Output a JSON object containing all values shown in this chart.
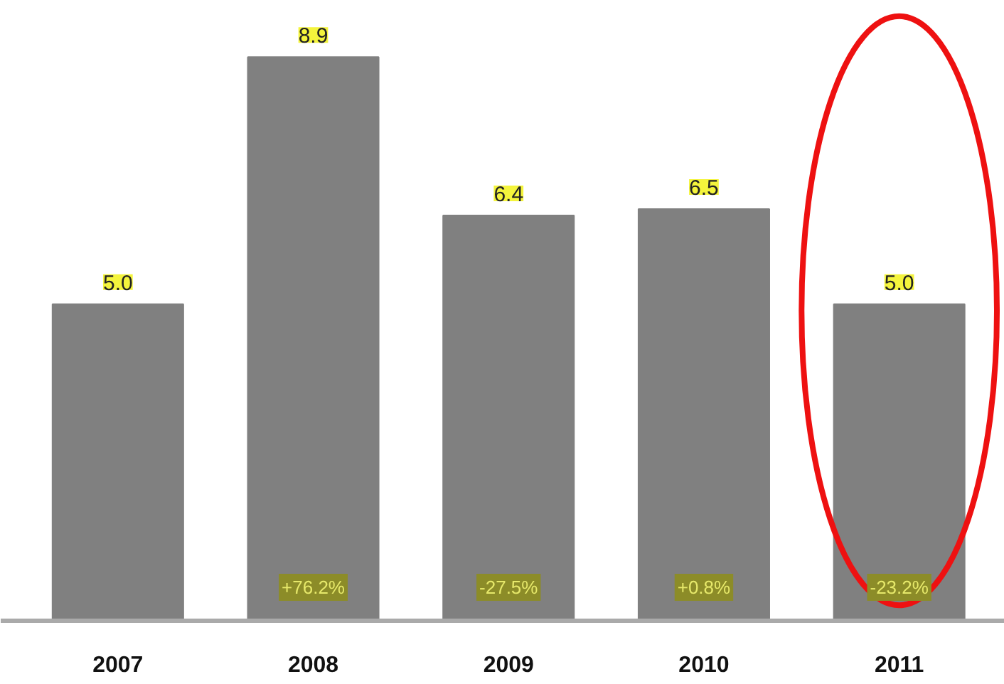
{
  "chart_data": {
    "type": "bar",
    "categories": [
      "2007",
      "2008",
      "2009",
      "2010",
      "2011"
    ],
    "values": [
      5.0,
      8.9,
      6.4,
      6.5,
      5.0
    ],
    "value_labels": [
      "5.0",
      "8.9",
      "6.4",
      "6.5",
      "5.0"
    ],
    "color": "#808080",
    "grid": false,
    "annotations": [
      {
        "text": "+76.2%",
        "x": "2008",
        "y": 0
      },
      {
        "text": "-27.5%",
        "x": "2009",
        "y": 0
      },
      {
        "text": "+0.8%",
        "x": "2010",
        "y": 0
      },
      {
        "text": "-23.2%",
        "x": "2011",
        "y": 0
      }
    ]
  }
}
